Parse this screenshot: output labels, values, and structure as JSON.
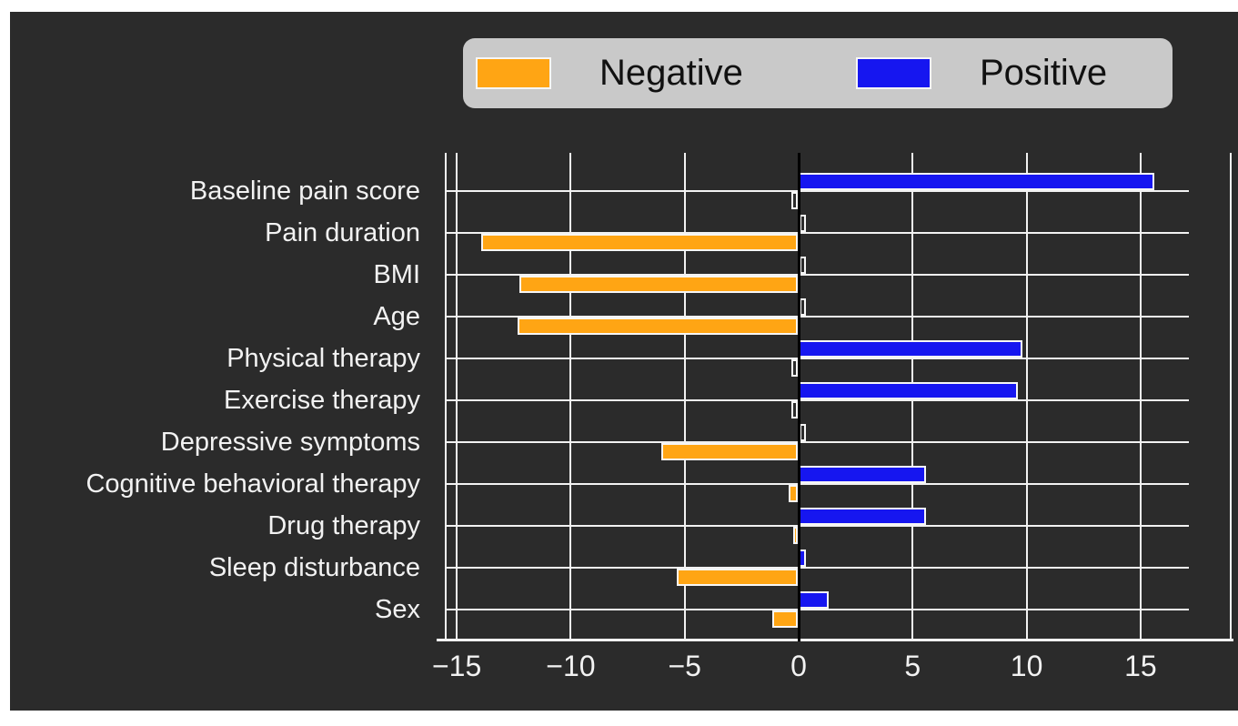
{
  "legend": {
    "items": [
      {
        "label": "Negative",
        "color": "#FFA514"
      },
      {
        "label": "Positive",
        "color": "#1616F0"
      }
    ]
  },
  "chart_data": {
    "type": "bar",
    "orientation": "horizontal",
    "title": "",
    "xlabel": "",
    "ylabel": "",
    "categories": [
      "Baseline pain score",
      "Pain duration",
      "BMI",
      "Age",
      "Physical therapy",
      "Exercise therapy",
      "Depressive symptoms",
      "Cognitive behavioral therapy",
      "Drug therapy",
      "Sleep disturbance",
      "Sex"
    ],
    "series": [
      {
        "name": "Negative",
        "color": "#FFA514",
        "values": [
          0,
          -13.9,
          -12.2,
          -12.3,
          0,
          0,
          -6.0,
          -0.4,
          -0.2,
          -5.3,
          -1.1
        ]
      },
      {
        "name": "Positive",
        "color": "#1616F0",
        "values": [
          15.6,
          0,
          0,
          0,
          9.8,
          9.6,
          0,
          5.6,
          5.6,
          0.3,
          1.3
        ]
      }
    ],
    "x_ticks": [
      -15,
      -10,
      -5,
      0,
      5,
      10,
      15
    ],
    "x_tick_labels": [
      "−15",
      "−10",
      "−5",
      "0",
      "5",
      "10",
      "15"
    ],
    "xlim": [
      -15.6,
      19.0
    ],
    "grid": true,
    "legend_position": "top",
    "zero_line": true
  },
  "colors": {
    "page_bg": "#FFFFFF",
    "panel_bg": "#2B2B2B",
    "grid": "#F2F2F2",
    "zero_line": "#000000",
    "legend_bg": "#C9C9C9",
    "text_light": "#F2F2F2",
    "text_dark": "#111111",
    "negative": "#FFA514",
    "positive": "#1616F0"
  }
}
